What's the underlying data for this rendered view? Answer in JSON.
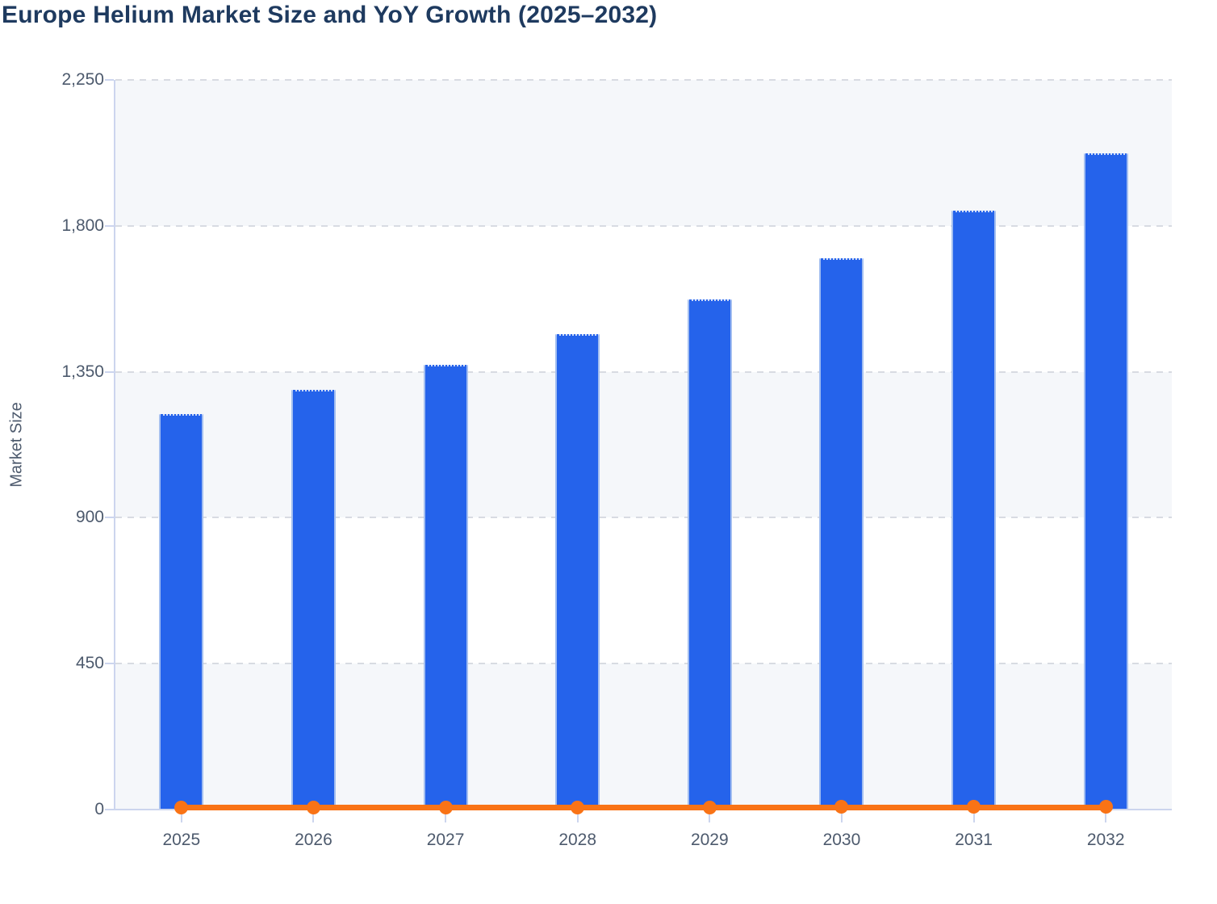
{
  "chart_data": {
    "type": "bar",
    "title": "Europe Helium Market Size and YoY Growth (2025–2032)",
    "xlabel": "",
    "ylabel": "Market Size",
    "categories": [
      "2025",
      "2026",
      "2027",
      "2028",
      "2029",
      "2030",
      "2031",
      "2032"
    ],
    "series": [
      {
        "name": "Market Size",
        "type": "bar",
        "color": "#2563eb",
        "values": [
          1220,
          1294,
          1372,
          1466,
          1574,
          1700,
          1848,
          2024
        ]
      },
      {
        "name": "YoY Growth",
        "type": "line",
        "color": "#f97316",
        "values": [
          6,
          6.1,
          6,
          6.9,
          7.4,
          8,
          8.7,
          9.5
        ],
        "note": "plotted on the Market Size axis, so the line renders flat at ~0"
      }
    ],
    "ylim": [
      0,
      2250
    ],
    "yticks": [
      {
        "value": 0,
        "label": "0"
      },
      {
        "value": 450,
        "label": "450"
      },
      {
        "value": 900,
        "label": "900"
      },
      {
        "value": 1350,
        "label": "1,350"
      },
      {
        "value": 1800,
        "label": "1,800"
      },
      {
        "value": 2250,
        "label": "2,250"
      }
    ],
    "grid": "horizontal dashed, alternating shaded bands",
    "legend": "none",
    "colors": {
      "bar": "#2563eb",
      "bar_border": "#a3bef0",
      "line": "#f97316",
      "band": "#f5f7fa",
      "axis": "#ccd5ee",
      "grid": "#d8dbe2",
      "title_text": "#1e3a5f",
      "tick_text": "#4d5a6d"
    }
  }
}
